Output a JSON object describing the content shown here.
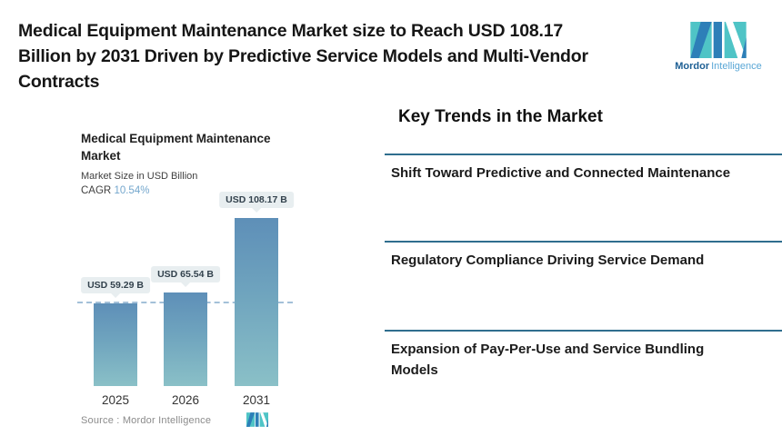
{
  "header": {
    "title_lines": [
      "Medical Equipment Maintenance Market size to Reach USD 108.17",
      "Billion by 2031 Driven by Predictive Service Models and Multi-Vendor",
      "Contracts"
    ]
  },
  "brand": {
    "bold": "Mordor",
    "light": "Intelligence"
  },
  "chart_data": {
    "type": "bar",
    "title": "Medical Equipment Maintenance Market",
    "subtitle": "Market Size in USD Billion",
    "ylabel": "Market Size in USD Billion",
    "cagr_label": "CAGR",
    "cagr": "10.54%",
    "categories": [
      "2025",
      "2026",
      "2031"
    ],
    "values": [
      59.29,
      65.54,
      108.17
    ],
    "bar_labels": [
      "USD 59.29 B",
      "USD 65.54 B",
      "USD 108.17 B"
    ],
    "reference_line_value": 59.29,
    "grid": false,
    "legend": false,
    "source": "Source :  Mordor Intelligence",
    "colors": {
      "bar_top": "#5e8fb8",
      "bar_bottom": "#8ac0c7",
      "reference_line": "#a3c0d8",
      "value_pill_bg": "#e8eef0",
      "cagr_value": "#74a7cd",
      "brand_teal": "#4fc4c6",
      "brand_blue": "#2d7fb8"
    }
  },
  "trends": {
    "heading": "Key Trends in the Market",
    "divider_color": "#2f6e8e",
    "items": [
      "Shift Toward Predictive and Connected Maintenance",
      "Regulatory Compliance Driving Service Demand",
      "Expansion of Pay-Per-Use and Service Bundling Models"
    ]
  }
}
